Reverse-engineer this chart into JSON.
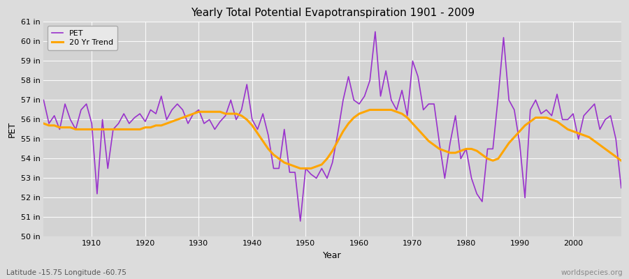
{
  "title": "Yearly Total Potential Evapotranspiration 1901 - 2009",
  "xlabel": "Year",
  "ylabel": "PET",
  "subtitle_left": "Latitude -15.75 Longitude -60.75",
  "subtitle_right": "worldspecies.org",
  "ylim": [
    50,
    61
  ],
  "ytick_labels": [
    "50 in",
    "51 in",
    "52 in",
    "53 in",
    "54 in",
    "55 in",
    "56 in",
    "57 in",
    "58 in",
    "59 in",
    "60 in",
    "61 in"
  ],
  "ytick_values": [
    50,
    51,
    52,
    53,
    54,
    55,
    56,
    57,
    58,
    59,
    60,
    61
  ],
  "pet_color": "#9932CC",
  "trend_color": "#FFA500",
  "fig_bg_color": "#DCDCDC",
  "plot_bg_color": "#D3D3D3",
  "legend_bg": "#E8E8E8",
  "years": [
    1901,
    1902,
    1903,
    1904,
    1905,
    1906,
    1907,
    1908,
    1909,
    1910,
    1911,
    1912,
    1913,
    1914,
    1915,
    1916,
    1917,
    1918,
    1919,
    1920,
    1921,
    1922,
    1923,
    1924,
    1925,
    1926,
    1927,
    1928,
    1929,
    1930,
    1931,
    1932,
    1933,
    1934,
    1935,
    1936,
    1937,
    1938,
    1939,
    1940,
    1941,
    1942,
    1943,
    1944,
    1945,
    1946,
    1947,
    1948,
    1949,
    1950,
    1951,
    1952,
    1953,
    1954,
    1955,
    1956,
    1957,
    1958,
    1959,
    1960,
    1961,
    1962,
    1963,
    1964,
    1965,
    1966,
    1967,
    1968,
    1969,
    1970,
    1971,
    1972,
    1973,
    1974,
    1975,
    1976,
    1977,
    1978,
    1979,
    1980,
    1981,
    1982,
    1983,
    1984,
    1985,
    1986,
    1987,
    1988,
    1989,
    1990,
    1991,
    1992,
    1993,
    1994,
    1995,
    1996,
    1997,
    1998,
    1999,
    2000,
    2001,
    2002,
    2003,
    2004,
    2005,
    2006,
    2007,
    2008,
    2009
  ],
  "pet_values": [
    57.0,
    55.8,
    56.2,
    55.5,
    56.8,
    56.0,
    55.5,
    56.5,
    56.8,
    55.8,
    52.2,
    56.0,
    53.5,
    55.5,
    55.8,
    56.3,
    55.8,
    56.1,
    56.3,
    55.9,
    56.5,
    56.3,
    57.2,
    56.0,
    56.5,
    56.8,
    56.5,
    55.8,
    56.3,
    56.5,
    55.8,
    56.0,
    55.5,
    55.9,
    56.2,
    57.0,
    56.0,
    56.5,
    57.8,
    56.0,
    55.5,
    56.3,
    55.2,
    53.5,
    53.5,
    55.5,
    53.3,
    53.3,
    50.8,
    53.5,
    53.2,
    53.0,
    53.5,
    53.0,
    53.8,
    55.3,
    57.0,
    58.2,
    57.0,
    56.8,
    57.2,
    58.0,
    60.5,
    57.2,
    58.5,
    57.0,
    56.5,
    57.5,
    56.2,
    59.0,
    58.2,
    56.5,
    56.8,
    56.8,
    54.8,
    53.0,
    54.8,
    56.2,
    54.0,
    54.5,
    53.0,
    52.2,
    51.8,
    54.5,
    54.5,
    57.2,
    60.2,
    57.0,
    56.5,
    54.8,
    52.0,
    56.5,
    57.0,
    56.3,
    56.5,
    56.2,
    57.3,
    56.0,
    56.0,
    56.3,
    55.0,
    56.2,
    56.5,
    56.8,
    55.5,
    56.0,
    56.2,
    55.0,
    52.5
  ],
  "trend_values": [
    55.8,
    55.7,
    55.7,
    55.6,
    55.6,
    55.6,
    55.5,
    55.5,
    55.5,
    55.5,
    55.5,
    55.5,
    55.5,
    55.5,
    55.5,
    55.5,
    55.5,
    55.5,
    55.5,
    55.6,
    55.6,
    55.7,
    55.7,
    55.8,
    55.9,
    56.0,
    56.1,
    56.2,
    56.3,
    56.4,
    56.4,
    56.4,
    56.4,
    56.4,
    56.3,
    56.3,
    56.3,
    56.2,
    56.0,
    55.7,
    55.3,
    54.9,
    54.5,
    54.2,
    54.0,
    53.8,
    53.7,
    53.6,
    53.5,
    53.5,
    53.5,
    53.6,
    53.7,
    54.0,
    54.4,
    54.9,
    55.4,
    55.8,
    56.1,
    56.3,
    56.4,
    56.5,
    56.5,
    56.5,
    56.5,
    56.5,
    56.4,
    56.3,
    56.1,
    55.8,
    55.5,
    55.2,
    54.9,
    54.7,
    54.5,
    54.4,
    54.3,
    54.3,
    54.4,
    54.5,
    54.5,
    54.4,
    54.2,
    54.0,
    53.9,
    54.0,
    54.4,
    54.8,
    55.1,
    55.4,
    55.7,
    55.9,
    56.1,
    56.1,
    56.1,
    56.0,
    55.9,
    55.7,
    55.5,
    55.4,
    55.3,
    55.2,
    55.1,
    54.9,
    54.7,
    54.5,
    54.3,
    54.1,
    53.9
  ]
}
